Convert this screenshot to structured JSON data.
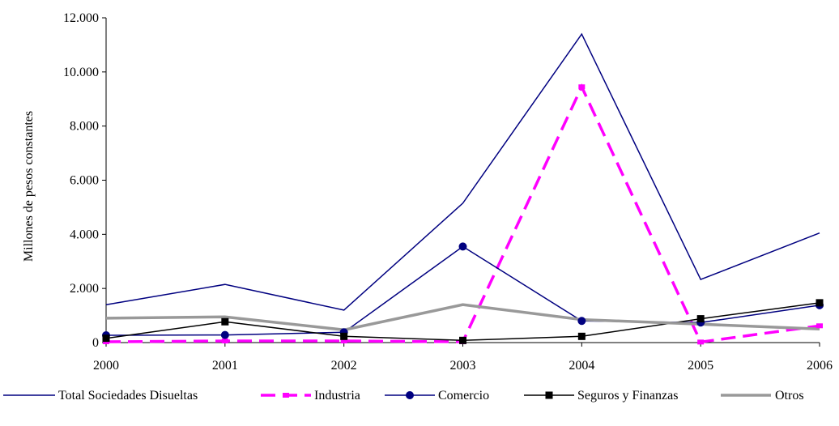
{
  "chart_data": {
    "type": "line",
    "title": "",
    "xlabel": "",
    "ylabel": "Millones de pesos constantes",
    "categories": [
      "2000",
      "2001",
      "2002",
      "2003",
      "2004",
      "2005",
      "2006"
    ],
    "ylim": [
      0,
      12000
    ],
    "yticks": [
      0,
      2000,
      4000,
      6000,
      8000,
      10000,
      12000
    ],
    "ytick_labels": [
      "0",
      "2.000",
      "4.000",
      "6.000",
      "8.000",
      "10.000",
      "12.000"
    ],
    "grid": false,
    "legend_position": "bottom",
    "series": [
      {
        "name": "Total Sociedades Disueltas",
        "values": [
          1400,
          2150,
          1200,
          5150,
          11400,
          2330,
          4050
        ],
        "color": "#000080",
        "style": "solid",
        "marker": "none"
      },
      {
        "name": "Industria",
        "values": [
          30,
          60,
          60,
          30,
          9450,
          20,
          620
        ],
        "color": "#ff00ff",
        "style": "dashed",
        "marker": "dash"
      },
      {
        "name": "Comercio",
        "values": [
          270,
          280,
          380,
          3550,
          800,
          740,
          1380
        ],
        "color": "#000080",
        "style": "solid",
        "marker": "circle"
      },
      {
        "name": "Seguros y Finanzas",
        "values": [
          160,
          770,
          230,
          80,
          230,
          880,
          1470
        ],
        "color": "#000000",
        "style": "solid",
        "marker": "square"
      },
      {
        "name": "Otros",
        "values": [
          900,
          950,
          470,
          1400,
          850,
          680,
          500
        ],
        "color": "#999999",
        "style": "solid",
        "marker": "none"
      }
    ]
  }
}
